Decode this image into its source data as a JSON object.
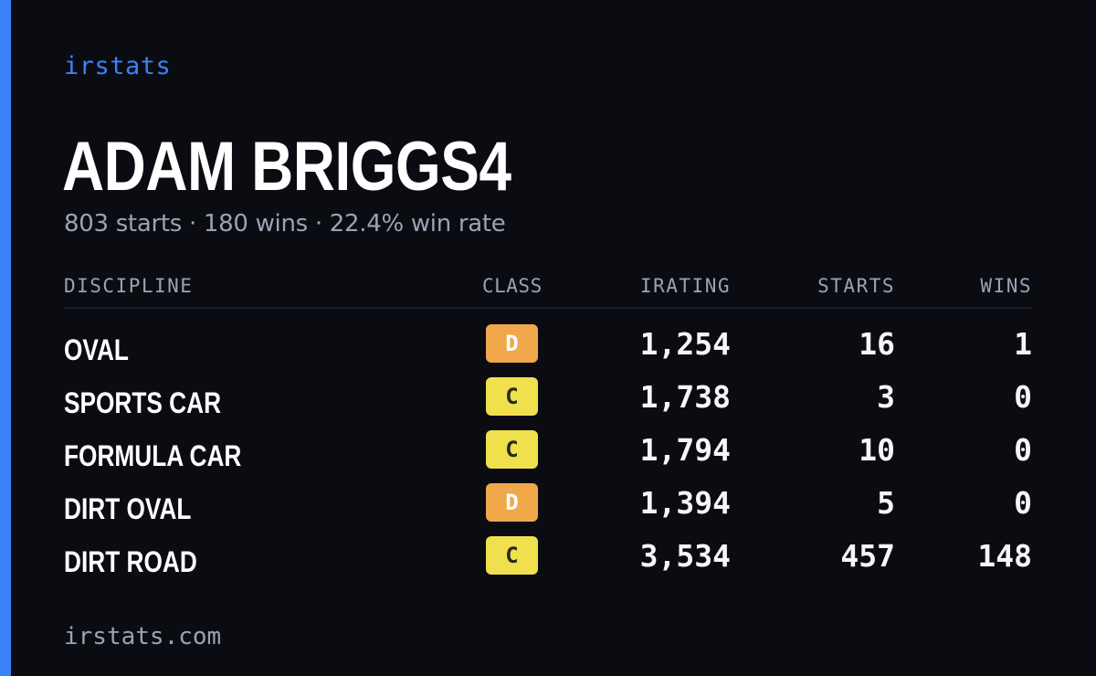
{
  "brand": "irstats",
  "driver": {
    "name": "ADAM BRIGGS4",
    "summary": "803 starts · 180 wins · 22.4% win rate"
  },
  "table": {
    "headers": {
      "discipline": "DISCIPLINE",
      "class": "CLASS",
      "irating": "IRATING",
      "starts": "STARTS",
      "wins": "WINS"
    },
    "rows": [
      {
        "discipline": "OVAL",
        "class": "D",
        "irating": "1,254",
        "starts": "16",
        "wins": "1"
      },
      {
        "discipline": "SPORTS CAR",
        "class": "C",
        "irating": "1,738",
        "starts": "3",
        "wins": "0"
      },
      {
        "discipline": "FORMULA CAR",
        "class": "C",
        "irating": "1,794",
        "starts": "10",
        "wins": "0"
      },
      {
        "discipline": "DIRT OVAL",
        "class": "D",
        "irating": "1,394",
        "starts": "5",
        "wins": "0"
      },
      {
        "discipline": "DIRT ROAD",
        "class": "C",
        "irating": "3,534",
        "starts": "457",
        "wins": "148"
      }
    ]
  },
  "class_colors": {
    "D": {
      "bg": "#f0a84b",
      "fg": "#ffffff"
    },
    "C": {
      "bg": "#f1e04d",
      "fg": "#2a2a1a"
    }
  },
  "colors": {
    "accent": "#3b82f6",
    "background": "#0a0c12",
    "muted": "#9aa3b2"
  },
  "footer": "irstats.com"
}
